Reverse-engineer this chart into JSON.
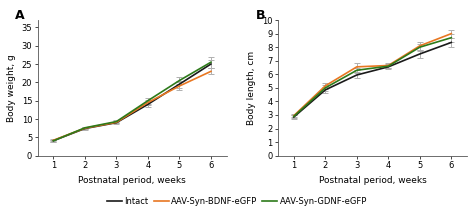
{
  "weeks": [
    1,
    2,
    3,
    4,
    5,
    6
  ],
  "panel_A": {
    "title": "A",
    "ylabel": "Body weight, g",
    "xlabel": "Postnatal period, weeks",
    "ylim": [
      0,
      37
    ],
    "yticks": [
      0,
      5,
      10,
      15,
      20,
      25,
      30,
      35
    ],
    "intact": {
      "y": [
        4.1,
        7.4,
        9.0,
        14.0,
        19.5,
        25.0
      ],
      "yerr": [
        0.25,
        0.3,
        0.3,
        0.7,
        1.0,
        1.0
      ]
    },
    "bdnf": {
      "y": [
        4.2,
        7.5,
        9.1,
        14.5,
        19.0,
        23.0
      ],
      "yerr": [
        0.25,
        0.3,
        0.3,
        0.7,
        1.0,
        0.8
      ]
    },
    "gdnf": {
      "y": [
        4.05,
        7.6,
        9.3,
        15.0,
        20.5,
        25.5
      ],
      "yerr": [
        0.25,
        0.3,
        0.4,
        0.8,
        0.9,
        1.5
      ]
    }
  },
  "panel_B": {
    "title": "B",
    "ylabel": "Body length, cm",
    "xlabel": "Postnatal period, weeks",
    "ylim": [
      0,
      10
    ],
    "yticks": [
      0,
      1,
      2,
      3,
      4,
      5,
      6,
      7,
      8,
      9,
      10
    ],
    "intact": {
      "y": [
        2.85,
        4.85,
        5.95,
        6.55,
        7.5,
        8.35
      ],
      "yerr": [
        0.12,
        0.2,
        0.2,
        0.15,
        0.3,
        0.3
      ]
    },
    "bdnf": {
      "y": [
        2.95,
        5.15,
        6.55,
        6.65,
        8.1,
        9.0
      ],
      "yerr": [
        0.12,
        0.2,
        0.25,
        0.15,
        0.3,
        0.3
      ]
    },
    "gdnf": {
      "y": [
        2.9,
        5.0,
        6.3,
        6.6,
        8.0,
        8.7
      ],
      "yerr": [
        0.12,
        0.2,
        0.2,
        0.15,
        0.25,
        0.3
      ]
    }
  },
  "colors": {
    "intact": "#1a1a1a",
    "bdnf": "#e87722",
    "gdnf": "#2d7a1a"
  },
  "ecolor": "#b0b0b0",
  "legend": {
    "intact_label": "Intact",
    "bdnf_label": "AAV-Syn-BDNF-eGFP",
    "gdnf_label": "AAV-Syn-GDNF-eGFP"
  },
  "background_color": "#ffffff",
  "linewidth": 1.2,
  "capsize": 2,
  "elinewidth": 0.7,
  "capthick": 0.7,
  "title_fontsize": 9,
  "label_fontsize": 6.5,
  "tick_fontsize": 6.0,
  "legend_fontsize": 6.0
}
